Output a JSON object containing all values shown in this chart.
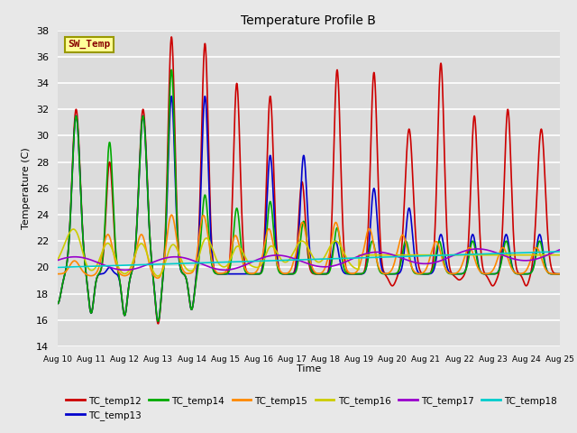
{
  "title": "Temperature Profile B",
  "xlabel": "Time",
  "ylabel": "Temperature (C)",
  "ylim": [
    14,
    38
  ],
  "yticks": [
    14,
    16,
    18,
    20,
    22,
    24,
    26,
    28,
    30,
    32,
    34,
    36,
    38
  ],
  "xtick_labels": [
    "Aug 10",
    "Aug 11",
    "Aug 12",
    "Aug 13",
    "Aug 14",
    "Aug 15",
    "Aug 16",
    "Aug 17",
    "Aug 18",
    "Aug 19",
    "Aug 20",
    "Aug 21",
    "Aug 22",
    "Aug 23",
    "Aug 24",
    "Aug 25"
  ],
  "bg_color": "#dcdcdc",
  "fig_bg_color": "#e8e8e8",
  "grid_color": "#ffffff",
  "sw_temp_box_facecolor": "#ffff99",
  "sw_temp_box_edgecolor": "#999900",
  "sw_temp_text_color": "#880000",
  "legend_entries": [
    "TC_temp12",
    "TC_temp13",
    "TC_temp14",
    "TC_temp15",
    "TC_temp16",
    "TC_temp17",
    "TC_temp18"
  ],
  "line_colors": [
    "#cc0000",
    "#0000cc",
    "#00aa00",
    "#ff8800",
    "#cccc00",
    "#9900cc",
    "#00cccc"
  ]
}
